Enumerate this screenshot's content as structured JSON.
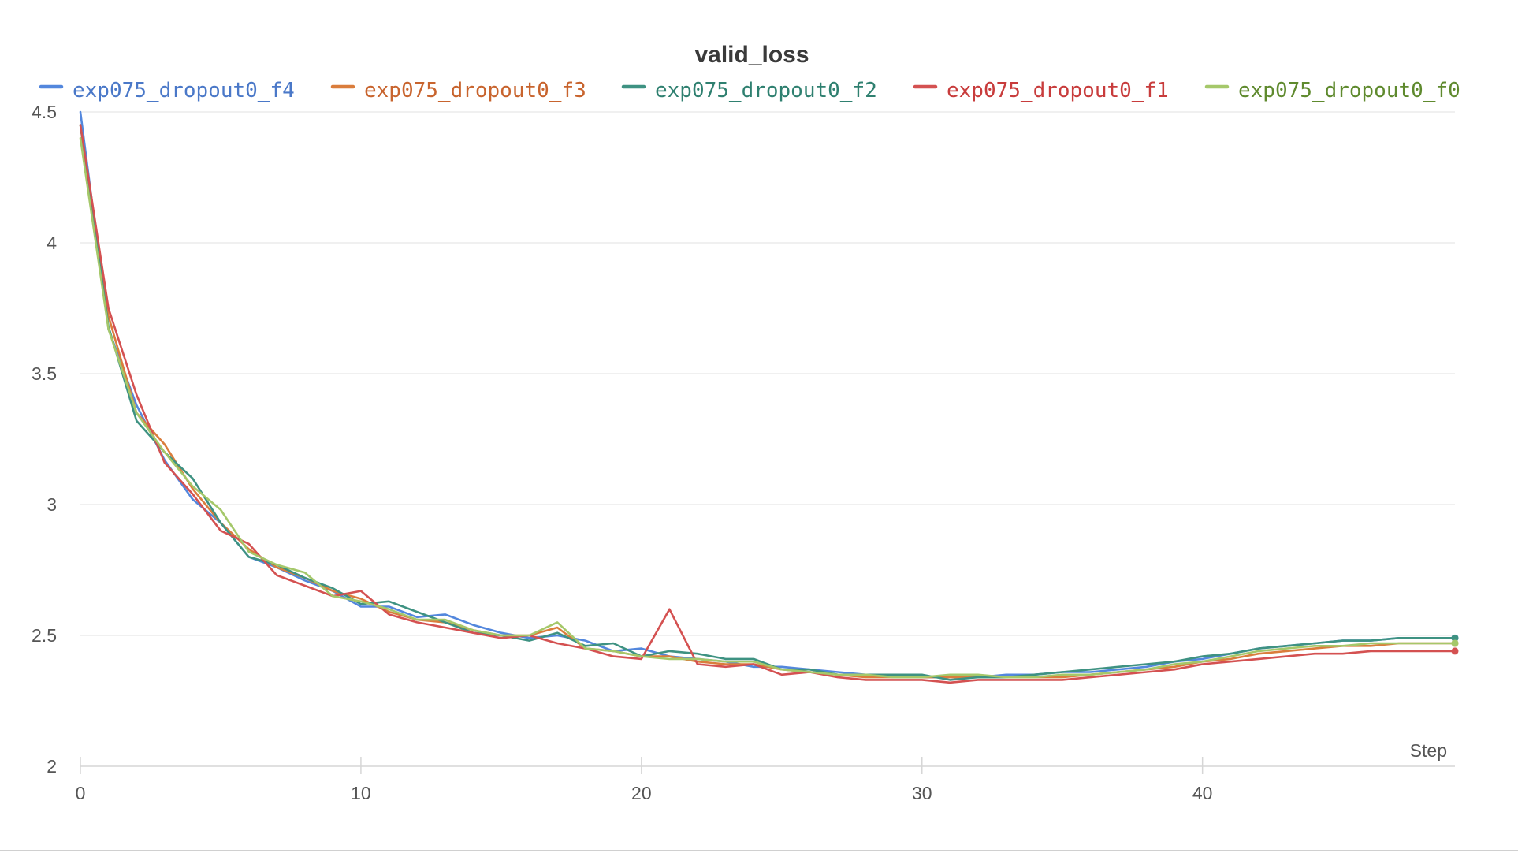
{
  "chart_data": {
    "type": "line",
    "title": "valid_loss",
    "xlabel": "Step",
    "ylabel": "",
    "xlim": [
      0,
      49
    ],
    "ylim": [
      2,
      4.5
    ],
    "x_ticks": [
      0,
      10,
      20,
      30,
      40
    ],
    "y_ticks": [
      2,
      2.5,
      3,
      3.5,
      4,
      4.5
    ],
    "x_tick_labels": [
      "0",
      "10",
      "20",
      "30",
      "40"
    ],
    "y_tick_labels": [
      "2",
      "2.5",
      "3",
      "3.5",
      "4",
      "4.5"
    ],
    "grid": true,
    "legend_position": "top",
    "x": [
      0,
      1,
      2,
      3,
      4,
      5,
      6,
      7,
      8,
      9,
      10,
      11,
      12,
      13,
      14,
      15,
      16,
      17,
      18,
      19,
      20,
      21,
      22,
      23,
      24,
      25,
      26,
      27,
      28,
      29,
      30,
      31,
      32,
      33,
      34,
      35,
      36,
      37,
      38,
      39,
      40,
      41,
      42,
      43,
      44,
      45,
      46,
      47,
      48,
      49
    ],
    "series": [
      {
        "name": "exp075_dropout0_f4",
        "color": "#5387dd",
        "text_color": "#4a78c8",
        "values": [
          4.5,
          3.67,
          3.38,
          3.17,
          3.02,
          2.93,
          2.8,
          2.76,
          2.71,
          2.67,
          2.61,
          2.61,
          2.57,
          2.58,
          2.54,
          2.51,
          2.49,
          2.5,
          2.48,
          2.44,
          2.45,
          2.42,
          2.41,
          2.4,
          2.38,
          2.38,
          2.37,
          2.36,
          2.35,
          2.34,
          2.34,
          2.34,
          2.34,
          2.35,
          2.35,
          2.36,
          2.36,
          2.37,
          2.38,
          2.4,
          2.41,
          2.43,
          2.45,
          2.46,
          2.47,
          2.48,
          2.48,
          2.49,
          2.49,
          2.49
        ]
      },
      {
        "name": "exp075_dropout0_f3",
        "color": "#da7d3c",
        "text_color": "#c8642e",
        "values": [
          4.45,
          3.72,
          3.35,
          3.23,
          3.06,
          2.93,
          2.83,
          2.76,
          2.72,
          2.67,
          2.64,
          2.59,
          2.56,
          2.55,
          2.52,
          2.5,
          2.5,
          2.53,
          2.45,
          2.44,
          2.42,
          2.42,
          2.4,
          2.39,
          2.39,
          2.37,
          2.36,
          2.35,
          2.34,
          2.34,
          2.34,
          2.34,
          2.34,
          2.34,
          2.34,
          2.34,
          2.35,
          2.36,
          2.37,
          2.38,
          2.4,
          2.41,
          2.43,
          2.44,
          2.45,
          2.46,
          2.46,
          2.47,
          2.47,
          2.47
        ]
      },
      {
        "name": "exp075_dropout0_f2",
        "color": "#3e9282",
        "text_color": "#2f8070",
        "values": [
          4.45,
          3.68,
          3.32,
          3.2,
          3.1,
          2.93,
          2.8,
          2.77,
          2.72,
          2.68,
          2.62,
          2.63,
          2.59,
          2.55,
          2.51,
          2.5,
          2.48,
          2.51,
          2.46,
          2.47,
          2.42,
          2.44,
          2.43,
          2.41,
          2.41,
          2.37,
          2.37,
          2.35,
          2.35,
          2.35,
          2.35,
          2.33,
          2.34,
          2.34,
          2.35,
          2.36,
          2.37,
          2.38,
          2.39,
          2.4,
          2.42,
          2.43,
          2.45,
          2.46,
          2.47,
          2.48,
          2.48,
          2.49,
          2.49,
          2.49
        ]
      },
      {
        "name": "exp075_dropout0_f1",
        "color": "#d45151",
        "text_color": "#c83c3c",
        "values": [
          4.45,
          3.75,
          3.42,
          3.16,
          3.04,
          2.9,
          2.85,
          2.73,
          2.69,
          2.65,
          2.67,
          2.58,
          2.55,
          2.53,
          2.51,
          2.49,
          2.5,
          2.47,
          2.45,
          2.42,
          2.41,
          2.6,
          2.39,
          2.38,
          2.39,
          2.35,
          2.36,
          2.34,
          2.33,
          2.33,
          2.33,
          2.32,
          2.33,
          2.33,
          2.33,
          2.33,
          2.34,
          2.35,
          2.36,
          2.37,
          2.39,
          2.4,
          2.41,
          2.42,
          2.43,
          2.43,
          2.44,
          2.44,
          2.44,
          2.44
        ]
      },
      {
        "name": "exp075_dropout0_f0",
        "color": "#a5c86a",
        "text_color": "#5f8a2e",
        "values": [
          4.4,
          3.67,
          3.35,
          3.2,
          3.07,
          2.98,
          2.82,
          2.77,
          2.74,
          2.65,
          2.63,
          2.6,
          2.56,
          2.56,
          2.52,
          2.5,
          2.5,
          2.55,
          2.45,
          2.44,
          2.42,
          2.41,
          2.41,
          2.4,
          2.4,
          2.37,
          2.36,
          2.35,
          2.35,
          2.34,
          2.34,
          2.35,
          2.35,
          2.34,
          2.34,
          2.35,
          2.35,
          2.36,
          2.37,
          2.39,
          2.4,
          2.42,
          2.44,
          2.45,
          2.46,
          2.46,
          2.47,
          2.47,
          2.47,
          2.47
        ]
      }
    ]
  }
}
